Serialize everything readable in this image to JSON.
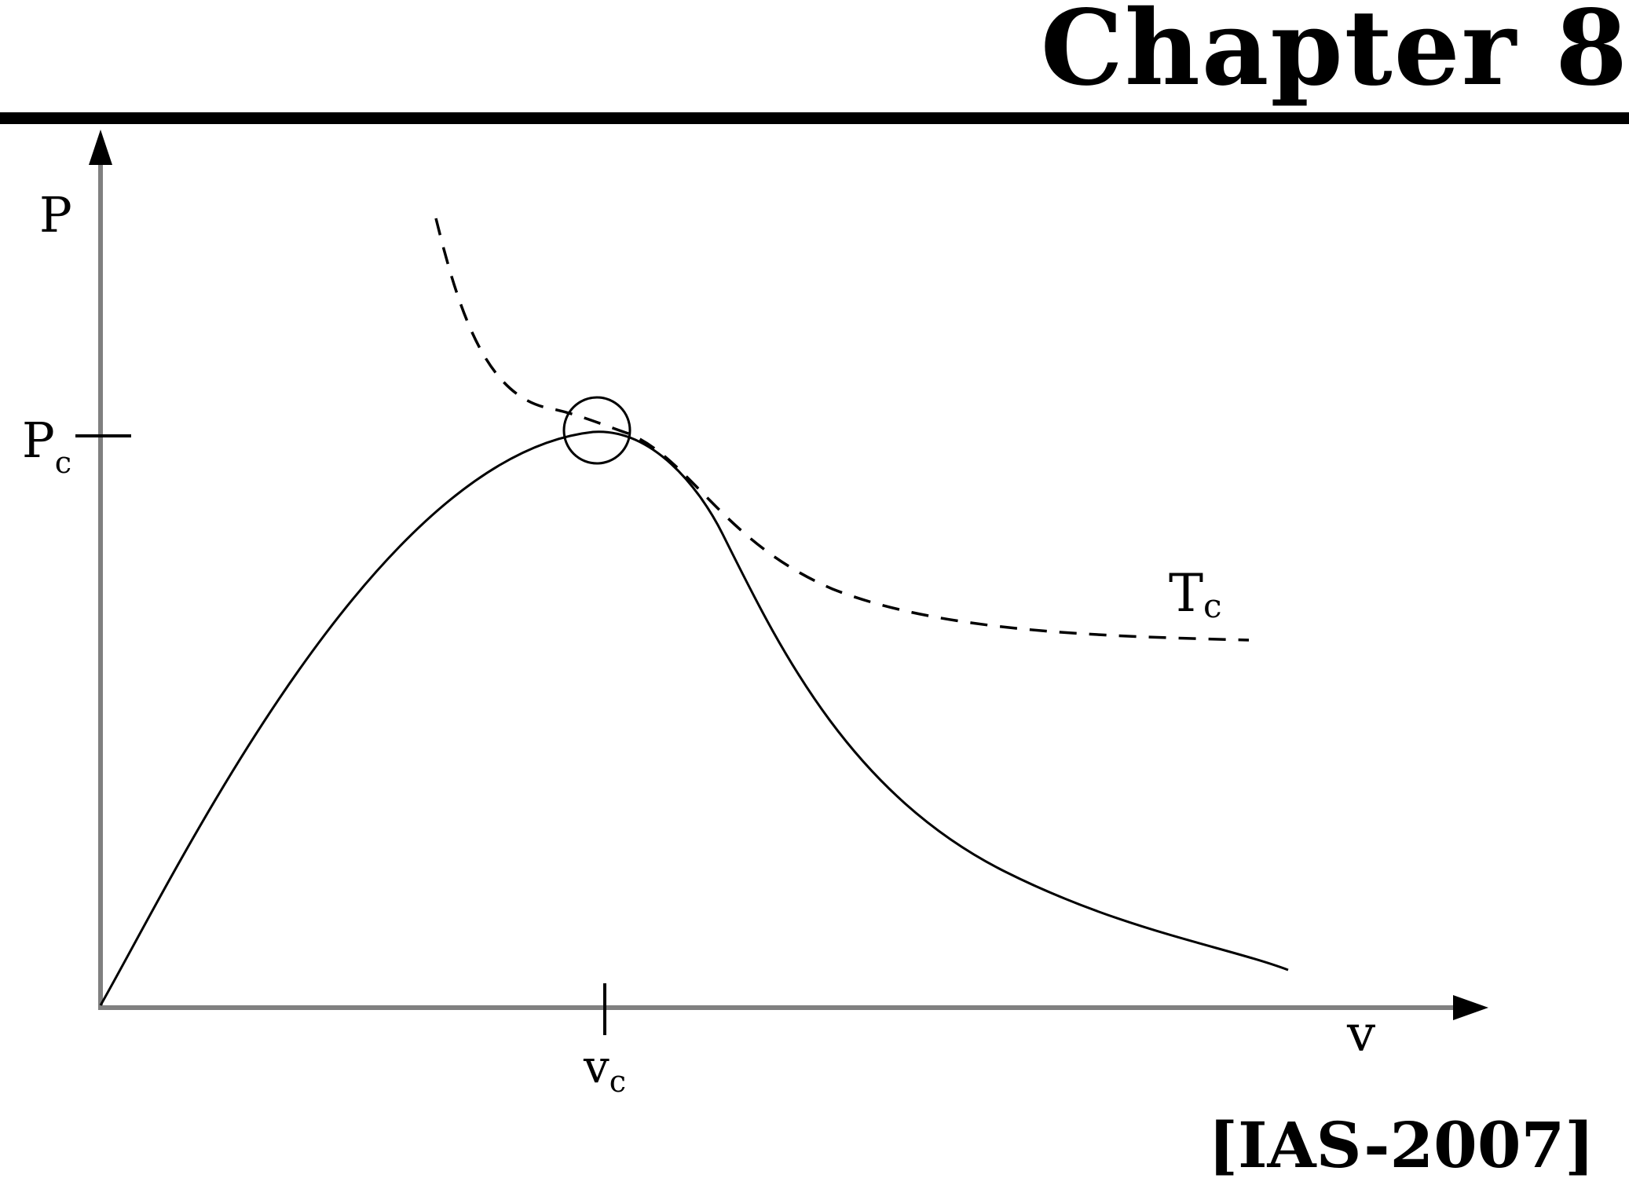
{
  "header": {
    "chapter_title": "Chapter 8"
  },
  "diagram": {
    "y_axis_label": "P",
    "x_axis_label": "v",
    "pc_label": "P",
    "pc_subscript": "c",
    "vc_label": "v",
    "vc_subscript": "c",
    "tc_label": "T",
    "tc_subscript": "c",
    "colors": {
      "axis": "#808080",
      "curve": "#000000"
    }
  },
  "footer": {
    "source_tag": "[IAS-2007]"
  }
}
